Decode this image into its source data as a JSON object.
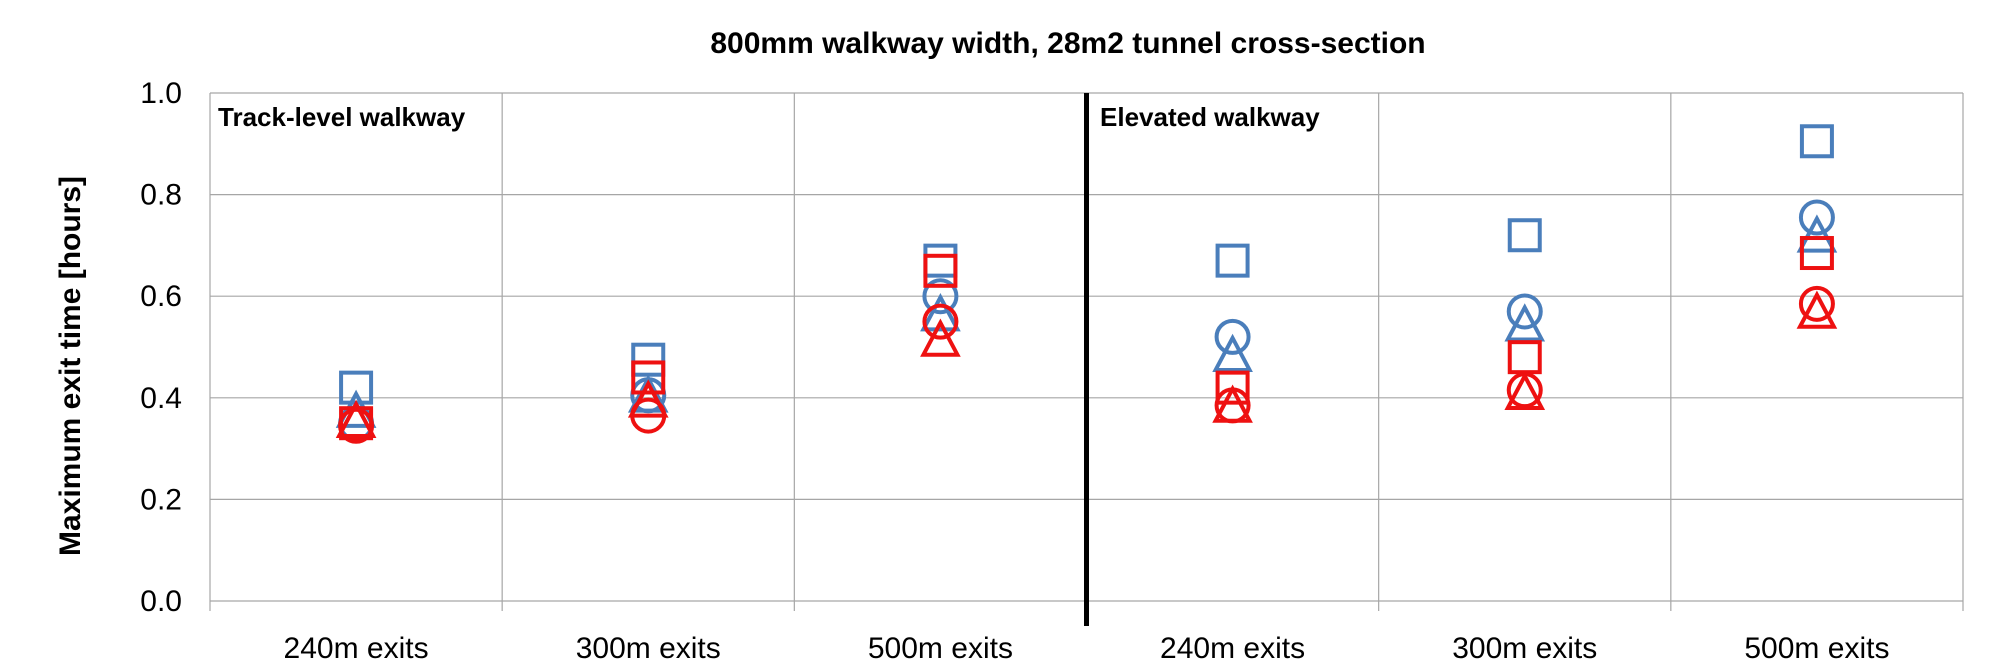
{
  "chart_data": {
    "type": "scatter",
    "title": "800mm walkway width, 28m2 tunnel cross-section",
    "ylabel": "Maximum exit time [hours]",
    "xlabel": "",
    "ylim": [
      0,
      1.0
    ],
    "yticks": [
      "0.0",
      "0.2",
      "0.4",
      "0.6",
      "0.8",
      "1.0"
    ],
    "categories": [
      "240m exits",
      "300m exits",
      "500m exits",
      "240m exits",
      "300m exits",
      "500m exits"
    ],
    "panels": [
      "Track-level walkway",
      "Elevated walkway"
    ],
    "grid": true,
    "colors": {
      "blue": "#4a7ebb",
      "red": "#ee1111",
      "divider": "#000000",
      "grid": "#a6a6a6"
    },
    "series": [
      {
        "color": "blue",
        "marker": "square",
        "values": [
          0.42,
          0.475,
          0.67,
          0.67,
          0.72,
          0.905
        ]
      },
      {
        "color": "blue",
        "marker": "circle",
        "values": [
          0.35,
          0.405,
          0.6,
          0.52,
          0.57,
          0.755
        ]
      },
      {
        "color": "blue",
        "marker": "triangle",
        "values": [
          0.37,
          0.4,
          0.56,
          0.48,
          0.54,
          0.715
        ]
      },
      {
        "color": "red",
        "marker": "square",
        "values": [
          0.35,
          0.44,
          0.65,
          0.42,
          0.48,
          0.685
        ]
      },
      {
        "color": "red",
        "marker": "circle",
        "values": [
          0.345,
          0.365,
          0.55,
          0.385,
          0.415,
          0.585
        ]
      },
      {
        "color": "red",
        "marker": "triangle",
        "values": [
          0.35,
          0.39,
          0.51,
          0.38,
          0.405,
          0.565
        ]
      }
    ]
  }
}
